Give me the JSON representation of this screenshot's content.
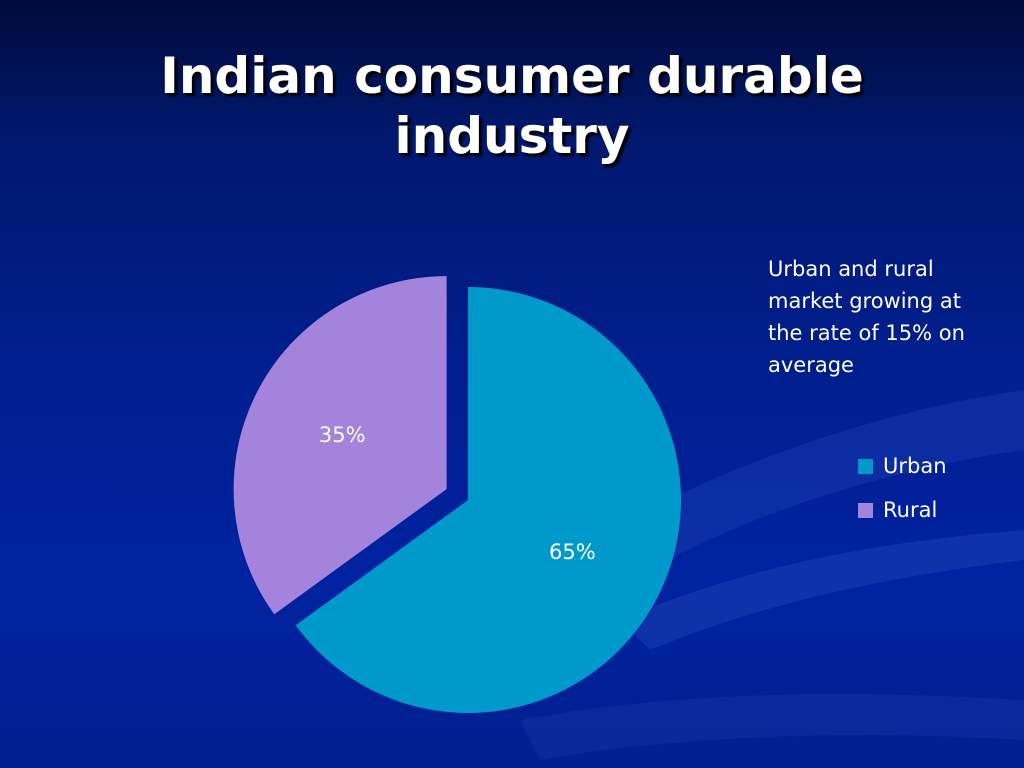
{
  "slide": {
    "title": "Indian consumer durable industry",
    "note": "Urban and rural market growing at the rate of 15% on average"
  },
  "colors": {
    "urban": "#0099cc",
    "rural": "#a383dc",
    "label": "#ffffff",
    "background": "#0020a0"
  },
  "chart_data": {
    "type": "pie",
    "title": "",
    "categories": [
      "Urban",
      "Rural"
    ],
    "values": [
      65,
      35
    ],
    "data_labels": [
      "65%",
      "35%"
    ],
    "exploded": "Rural",
    "legend_placement": "right",
    "legend": [
      {
        "name": "Urban",
        "color": "#0099cc"
      },
      {
        "name": "Rural",
        "color": "#a383dc"
      }
    ]
  }
}
